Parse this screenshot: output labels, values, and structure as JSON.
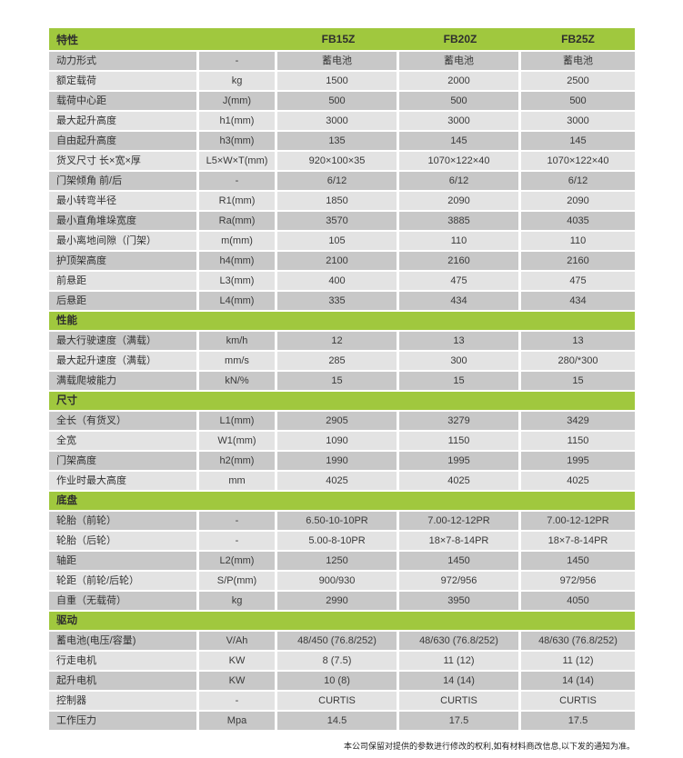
{
  "colors": {
    "green": "#a0c83e",
    "row_dark": "#c8c8c8",
    "row_light": "#e3e3e3",
    "text": "#3a3a3a"
  },
  "table": {
    "header": {
      "feature_label": "特性",
      "models": [
        "FB15Z",
        "FB20Z",
        "FB25Z"
      ]
    },
    "sections": [
      {
        "title": null,
        "rows": [
          {
            "label": "动力形式",
            "unit": "-",
            "values": [
              "蓄电池",
              "蓄电池",
              "蓄电池"
            ]
          },
          {
            "label": "额定载荷",
            "unit": "kg",
            "values": [
              "1500",
              "2000",
              "2500"
            ]
          },
          {
            "label": "载荷中心距",
            "unit": "J(mm)",
            "values": [
              "500",
              "500",
              "500"
            ]
          },
          {
            "label": "最大起升高度",
            "unit": "h1(mm)",
            "values": [
              "3000",
              "3000",
              "3000"
            ]
          },
          {
            "label": "自由起升高度",
            "unit": "h3(mm)",
            "values": [
              "135",
              "145",
              "145"
            ]
          },
          {
            "label": "货叉尺寸 长×宽×厚",
            "unit": "L5×W×T(mm)",
            "values": [
              "920×100×35",
              "1070×122×40",
              "1070×122×40"
            ]
          },
          {
            "label": "门架倾角 前/后",
            "unit": "-",
            "values": [
              "6/12",
              "6/12",
              "6/12"
            ]
          },
          {
            "label": "最小转弯半径",
            "unit": "R1(mm)",
            "values": [
              "1850",
              "2090",
              "2090"
            ]
          },
          {
            "label": "最小直角堆垛宽度",
            "unit": "Ra(mm)",
            "values": [
              "3570",
              "3885",
              "4035"
            ]
          },
          {
            "label": "最小离地间隙（门架）",
            "unit": "m(mm)",
            "values": [
              "105",
              "110",
              "110"
            ]
          },
          {
            "label": "护顶架高度",
            "unit": "h4(mm)",
            "values": [
              "2100",
              "2160",
              "2160"
            ]
          },
          {
            "label": "前悬距",
            "unit": "L3(mm)",
            "values": [
              "400",
              "475",
              "475"
            ]
          },
          {
            "label": "后悬距",
            "unit": "L4(mm)",
            "values": [
              "335",
              "434",
              "434"
            ]
          }
        ]
      },
      {
        "title": "性能",
        "rows": [
          {
            "label": "最大行驶速度（满载）",
            "unit": "km/h",
            "values": [
              "12",
              "13",
              "13"
            ]
          },
          {
            "label": "最大起升速度（满载）",
            "unit": "mm/s",
            "values": [
              "285",
              "300",
              "280/*300"
            ]
          },
          {
            "label": "满载爬坡能力",
            "unit": "kN/%",
            "values": [
              "15",
              "15",
              "15"
            ]
          }
        ]
      },
      {
        "title": "尺寸",
        "rows": [
          {
            "label": "全长（有货叉）",
            "unit": "L1(mm)",
            "values": [
              "2905",
              "3279",
              "3429"
            ]
          },
          {
            "label": "全宽",
            "unit": "W1(mm)",
            "values": [
              "1090",
              "1150",
              "1150"
            ]
          },
          {
            "label": "门架高度",
            "unit": "h2(mm)",
            "values": [
              "1990",
              "1995",
              "1995"
            ]
          },
          {
            "label": "作业时最大高度",
            "unit": "mm",
            "values": [
              "4025",
              "4025",
              "4025"
            ]
          }
        ]
      },
      {
        "title": "底盘",
        "rows": [
          {
            "label": "轮胎（前轮）",
            "unit": "-",
            "values": [
              "6.50-10-10PR",
              "7.00-12-12PR",
              "7.00-12-12PR"
            ]
          },
          {
            "label": "轮胎（后轮）",
            "unit": "-",
            "values": [
              "5.00-8-10PR",
              "18×7-8-14PR",
              "18×7-8-14PR"
            ]
          },
          {
            "label": "轴距",
            "unit": "L2(mm)",
            "values": [
              "1250",
              "1450",
              "1450"
            ]
          },
          {
            "label": "轮距（前轮/后轮）",
            "unit": "S/P(mm)",
            "values": [
              "900/930",
              "972/956",
              "972/956"
            ]
          },
          {
            "label": "自重（无载荷）",
            "unit": "kg",
            "values": [
              "2990",
              "3950",
              "4050"
            ]
          }
        ]
      },
      {
        "title": "驱动",
        "rows": [
          {
            "label": "蓄电池(电压/容量)",
            "unit": "V/Ah",
            "values": [
              "48/450 (76.8/252)",
              "48/630 (76.8/252)",
              "48/630 (76.8/252)"
            ]
          },
          {
            "label": "行走电机",
            "unit": "KW",
            "values": [
              "8 (7.5)",
              "11 (12)",
              "11 (12)"
            ]
          },
          {
            "label": "起升电机",
            "unit": "KW",
            "values": [
              "10 (8)",
              "14 (14)",
              "14 (14)"
            ]
          },
          {
            "label": "控制器",
            "unit": "-",
            "values": [
              "CURTIS",
              "CURTIS",
              "CURTIS"
            ]
          },
          {
            "label": "工作压力",
            "unit": "Mpa",
            "values": [
              "14.5",
              "17.5",
              "17.5"
            ]
          }
        ]
      }
    ]
  },
  "footer": {
    "note": "本公司保留对提供的参数进行修改的权利,如有材料商改信息,以下发的通知为准。"
  }
}
